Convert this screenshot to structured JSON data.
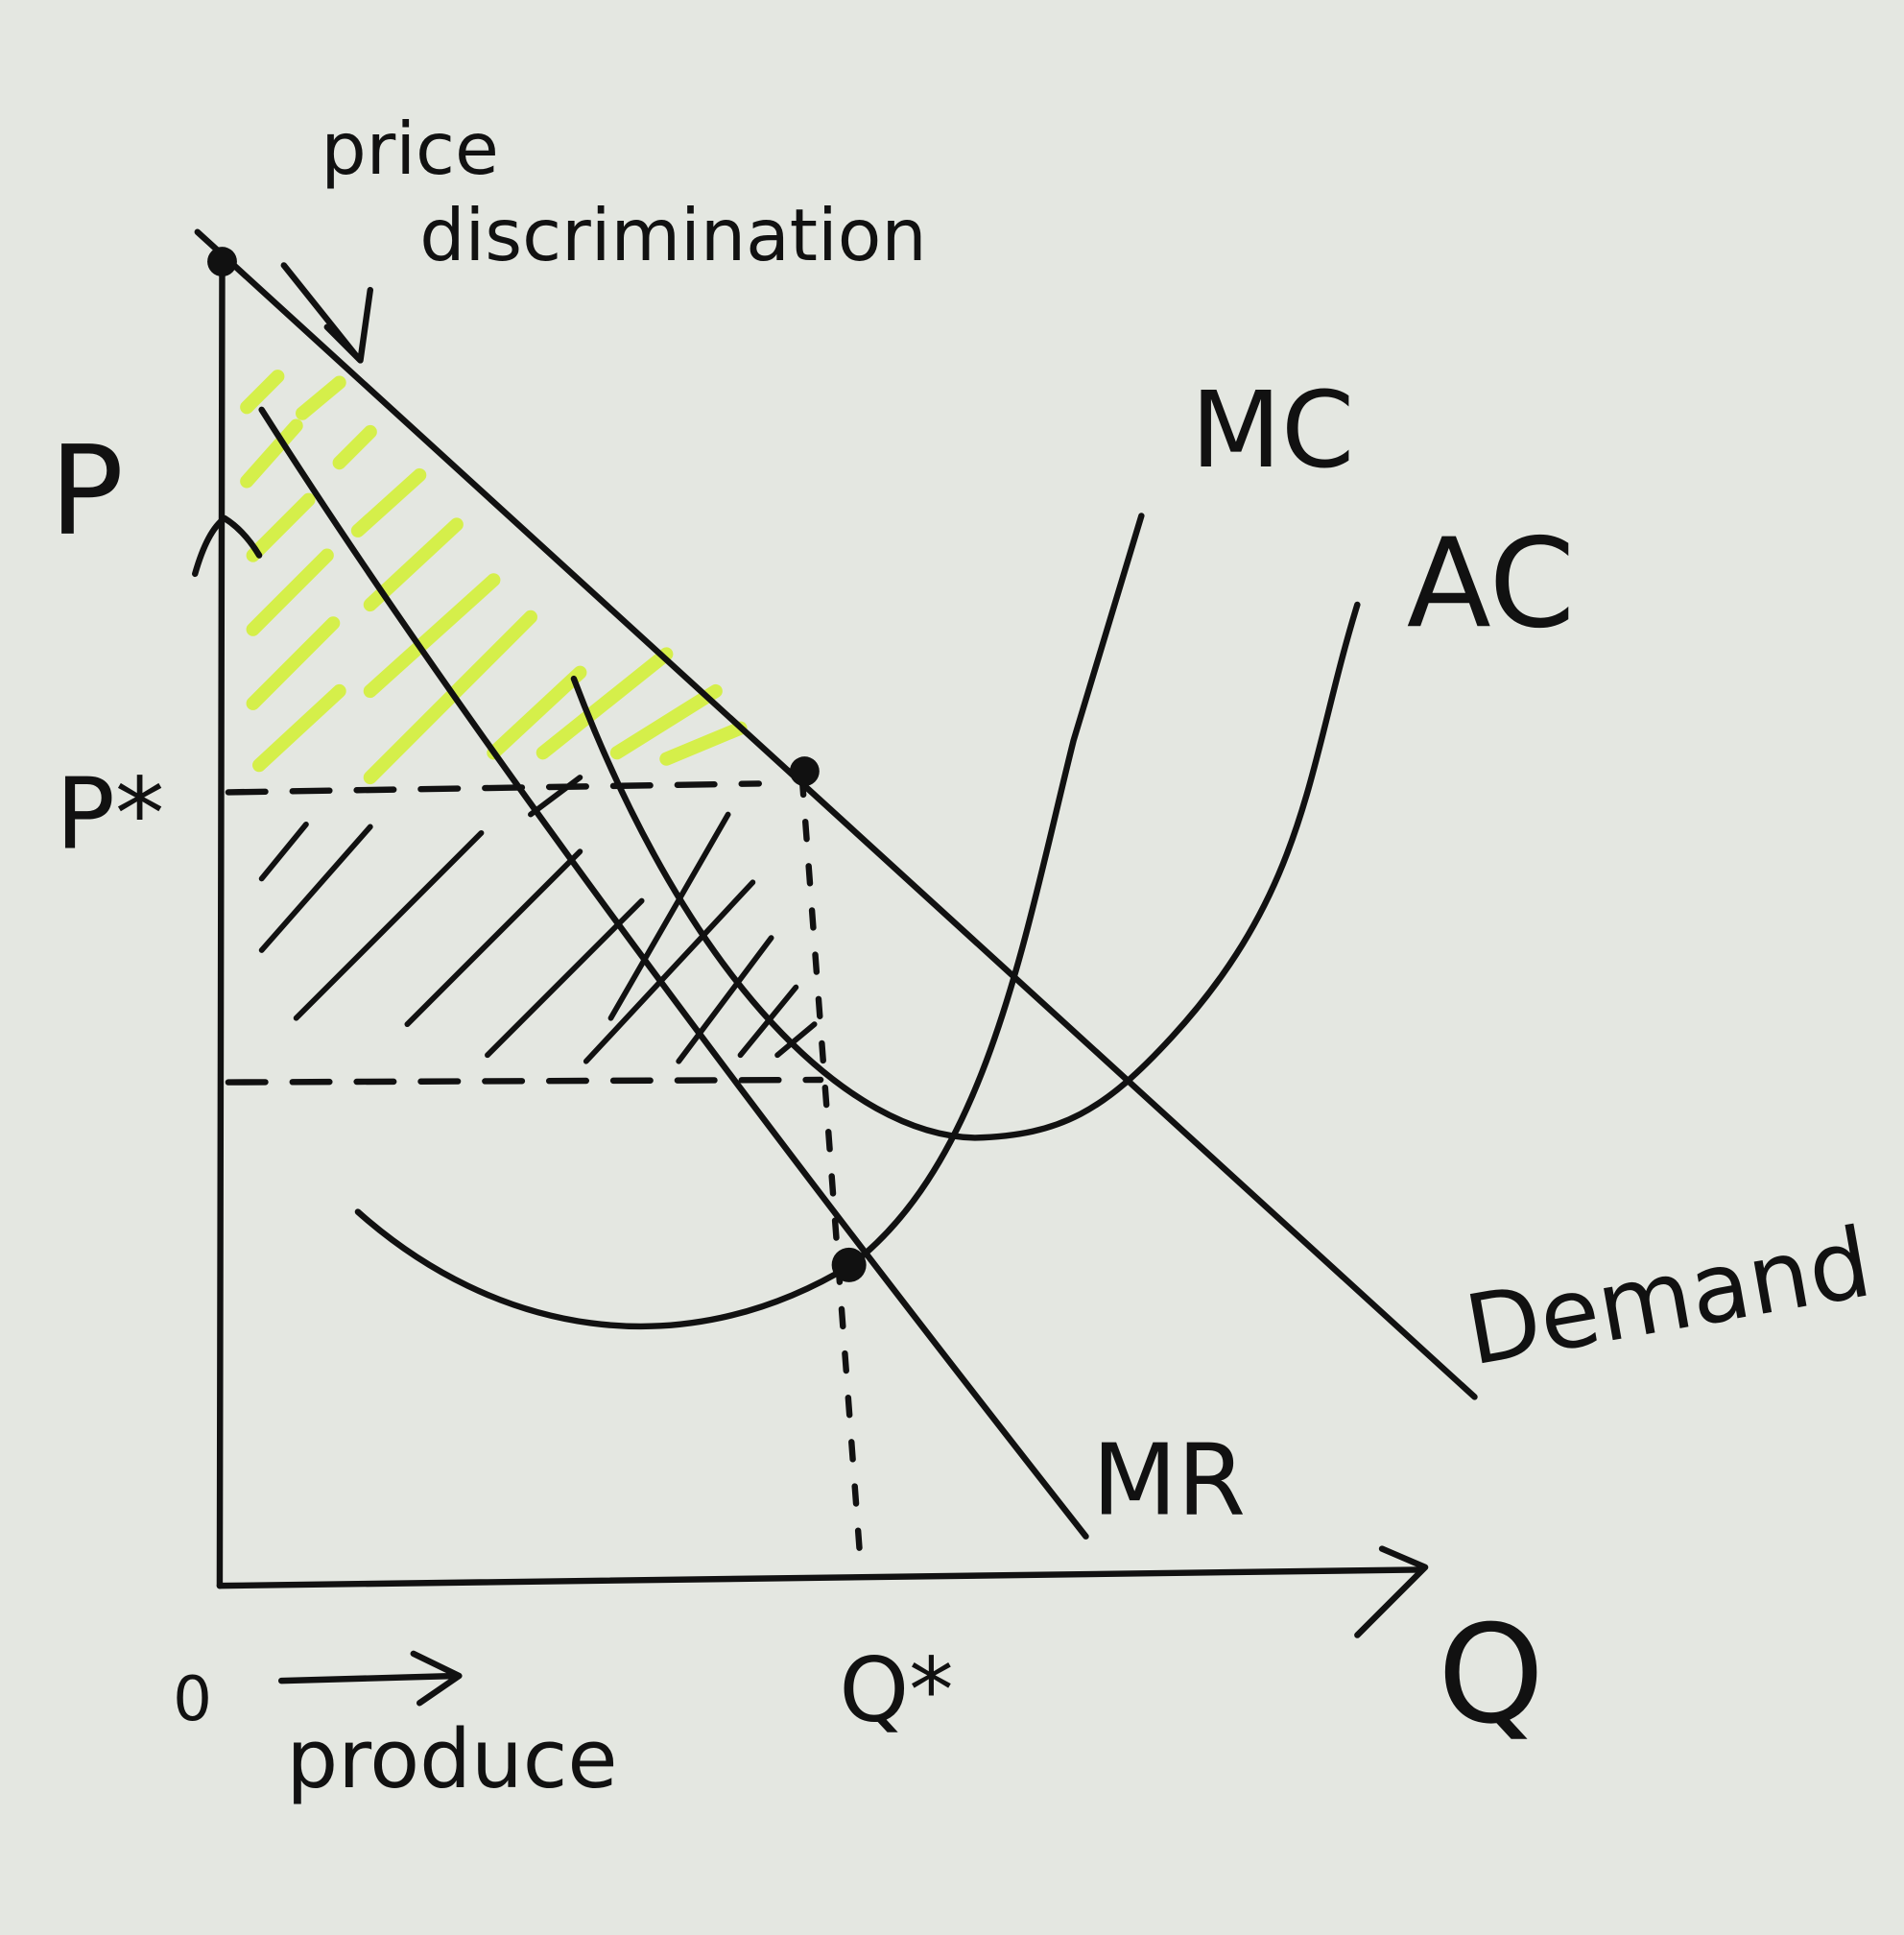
{
  "labels": {
    "title_line1": "price",
    "title_line2": "discrimination",
    "price_axis": "P",
    "price_star": "P*",
    "mc": "MC",
    "ac": "AC",
    "demand": "Demand",
    "mr": "MR",
    "origin": "0",
    "produce": "produce",
    "quantity_star": "Q*",
    "quantity_axis": "Q"
  }
}
